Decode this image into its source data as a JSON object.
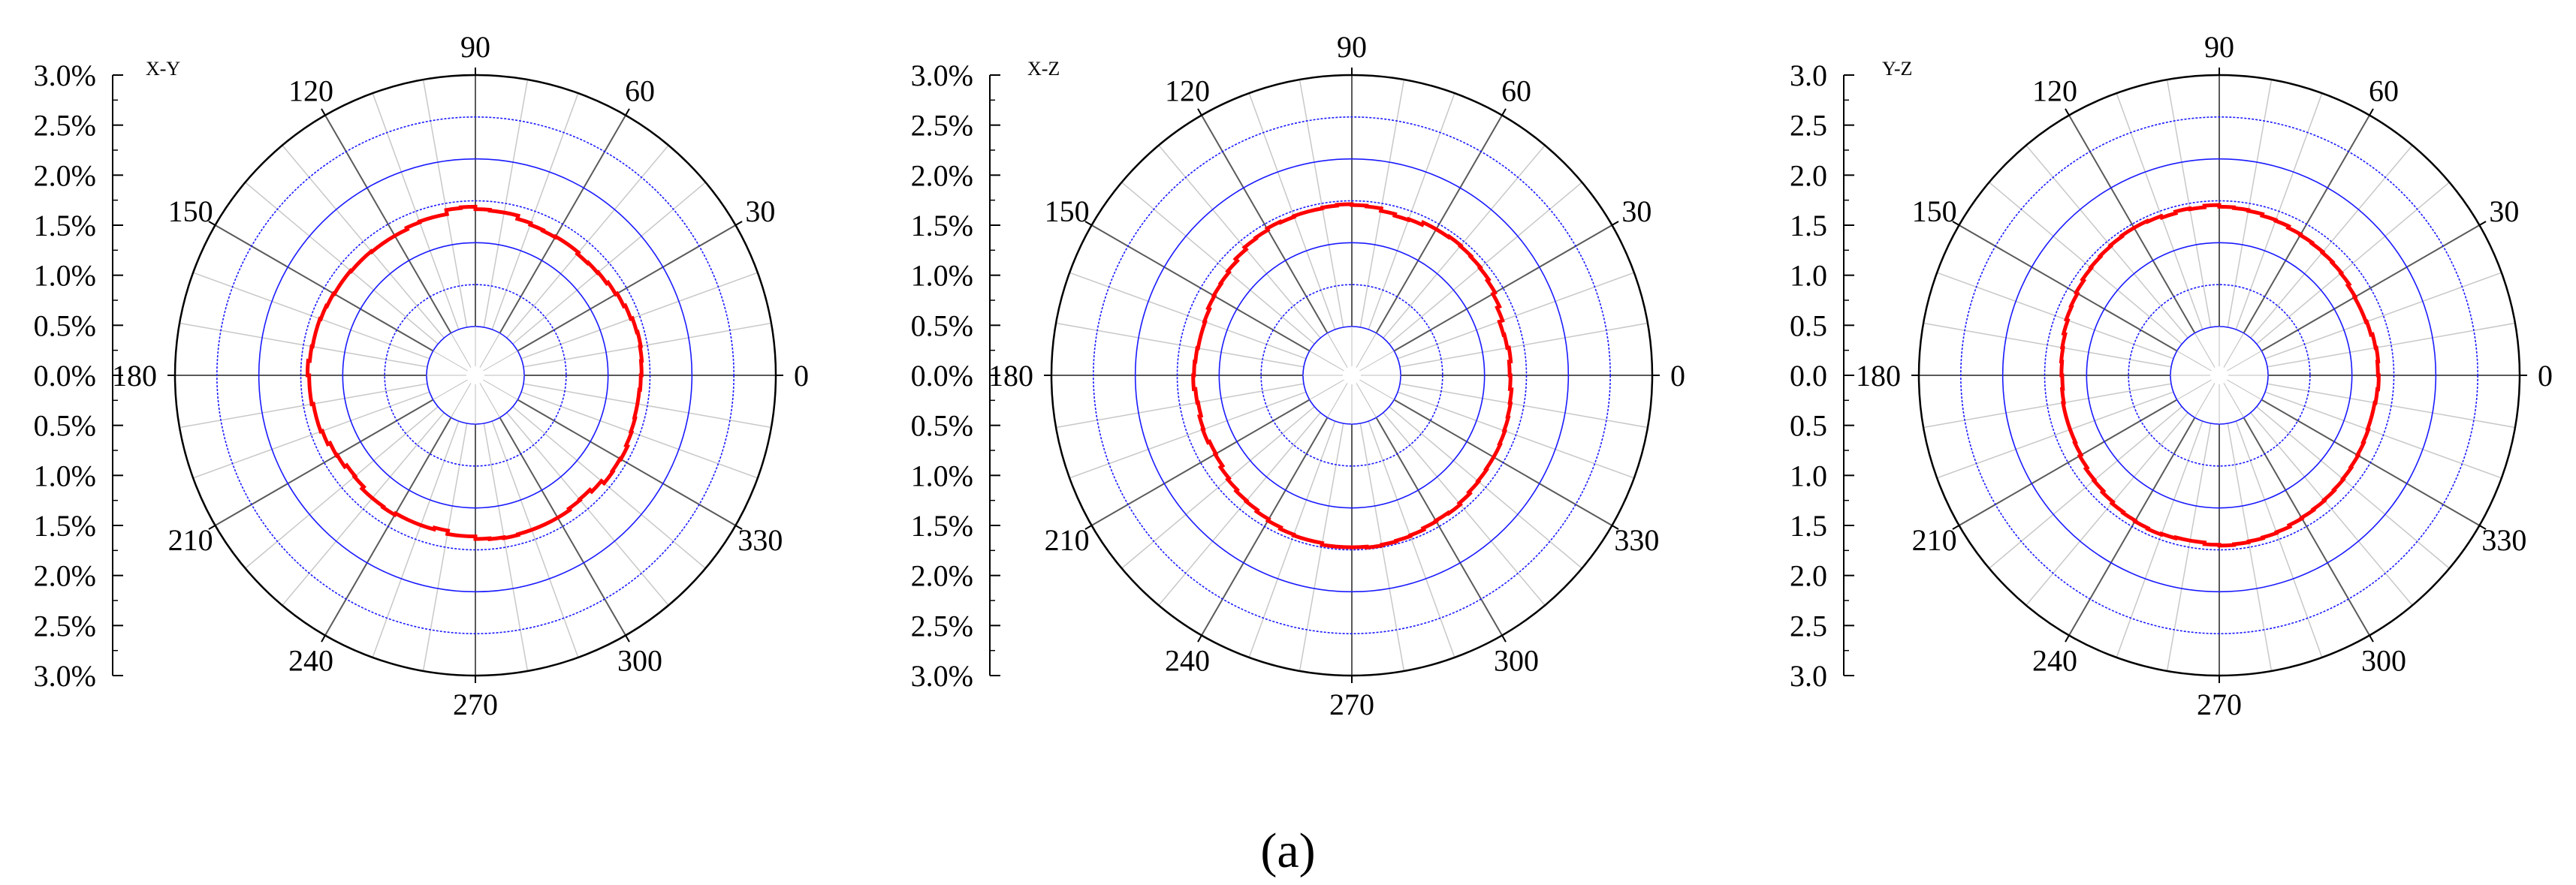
{
  "caption": "(a)",
  "chart_data": [
    {
      "type": "polar-histogram",
      "plane": "X-Y",
      "angle_ticks": [
        "0",
        "30",
        "60",
        "90",
        "120",
        "150",
        "180",
        "210",
        "240",
        "270",
        "300",
        "330"
      ],
      "radial_ticks_upper": [
        "3.0%",
        "2.5%",
        "2.0%",
        "1.5%",
        "1.0%",
        "0.5%",
        "0.0%"
      ],
      "radial_ticks_lower": [
        "0.5%",
        "1.0%",
        "1.5%",
        "2.0%",
        "2.5%",
        "3.0%"
      ],
      "rlim": [
        0,
        3.0
      ],
      "rings": [
        0.5,
        1.0,
        1.5,
        2.0,
        2.5,
        3.0
      ],
      "bin_width_deg": 5,
      "values": [
        1.4,
        1.41,
        1.42,
        1.41,
        1.39,
        1.37,
        1.35,
        1.33,
        1.32,
        1.31,
        1.33,
        1.33,
        1.32,
        1.33,
        1.35,
        1.39,
        1.39,
        1.4,
        1.43,
        1.42,
        1.37,
        1.37,
        1.36,
        1.34,
        1.34,
        1.34,
        1.35,
        1.35,
        1.36,
        1.36,
        1.37,
        1.38,
        1.39,
        1.39,
        1.4,
        1.42,
        1.4,
        1.4,
        1.38,
        1.38,
        1.36,
        1.33,
        1.32,
        1.29,
        1.3,
        1.33,
        1.33,
        1.34,
        1.32,
        1.32,
        1.32,
        1.3,
        1.34,
        1.34,
        1.37,
        1.38,
        1.39,
        1.38,
        1.38,
        1.38,
        1.38,
        1.36,
        1.35,
        1.38,
        1.42,
        1.41,
        1.42,
        1.4,
        1.39,
        1.38,
        1.38,
        1.39
      ]
    },
    {
      "type": "polar-histogram",
      "plane": "X-Z",
      "angle_ticks": [
        "0",
        "30",
        "60",
        "90",
        "120",
        "150",
        "180",
        "210",
        "240",
        "270",
        "300",
        "330"
      ],
      "radial_ticks_upper": [
        "3.0%",
        "2.5%",
        "2.0%",
        "1.5%",
        "1.0%",
        "0.5%",
        "0.0%"
      ],
      "radial_ticks_lower": [
        "0.5%",
        "1.0%",
        "1.5%",
        "2.0%",
        "2.5%",
        "3.0%"
      ],
      "rlim": [
        0,
        3.0
      ],
      "rings": [
        0.5,
        1.0,
        1.5,
        2.0,
        2.5,
        3.0
      ],
      "bin_width_deg": 5,
      "values": [
        1.3,
        1.32,
        1.3,
        1.29,
        1.33,
        1.36,
        1.39,
        1.41,
        1.42,
        1.43,
        1.44,
        1.43,
        1.43,
        1.4,
        1.39,
        1.41,
        1.44,
        1.45,
        1.46,
        1.45,
        1.44,
        1.44,
        1.43,
        1.44,
        1.42,
        1.41,
        1.38,
        1.35,
        1.33,
        1.32,
        1.31,
        1.29,
        1.28,
        1.28,
        1.29,
        1.3,
        1.31,
        1.29,
        1.28,
        1.3,
        1.31,
        1.29,
        1.3,
        1.33,
        1.35,
        1.37,
        1.38,
        1.4,
        1.42,
        1.44,
        1.45,
        1.45,
        1.47,
        1.47,
        1.47,
        1.48,
        1.47,
        1.46,
        1.45,
        1.43,
        1.42,
        1.43,
        1.41,
        1.39,
        1.38,
        1.37,
        1.37,
        1.36,
        1.35,
        1.34,
        1.33,
        1.31
      ]
    },
    {
      "type": "polar-histogram",
      "plane": "Y-Z",
      "angle_ticks": [
        "0",
        "30",
        "60",
        "90",
        "120",
        "150",
        "180",
        "210",
        "240",
        "270",
        "300",
        "330"
      ],
      "radial_ticks_upper": [
        "3.0",
        "2.5",
        "2.0",
        "1.5",
        "1.0",
        "0.5",
        "0.0"
      ],
      "radial_ticks_lower": [
        "0.5",
        "1.0",
        "1.5",
        "2.0",
        "2.5",
        "3.0"
      ],
      "rlim": [
        0,
        3.0
      ],
      "rings": [
        0.5,
        1.0,
        1.5,
        2.0,
        2.5,
        3.0
      ],
      "bin_width_deg": 5,
      "values": [
        1.31,
        1.32,
        1.31,
        1.29,
        1.28,
        1.28,
        1.29,
        1.31,
        1.32,
        1.33,
        1.34,
        1.35,
        1.36,
        1.38,
        1.39,
        1.41,
        1.42,
        1.43,
        1.45,
        1.43,
        1.44,
        1.42,
        1.44,
        1.45,
        1.45,
        1.44,
        1.43,
        1.42,
        1.41,
        1.39,
        1.37,
        1.36,
        1.34,
        1.32,
        1.31,
        1.3,
        1.29,
        1.3,
        1.31,
        1.31,
        1.31,
        1.32,
        1.34,
        1.36,
        1.37,
        1.39,
        1.41,
        1.42,
        1.43,
        1.44,
        1.43,
        1.42,
        1.42,
        1.44,
        1.45,
        1.44,
        1.43,
        1.42,
        1.41,
        1.39,
        1.38,
        1.37,
        1.36,
        1.35,
        1.34,
        1.33,
        1.32,
        1.31,
        1.3,
        1.3,
        1.31,
        1.32
      ]
    }
  ]
}
